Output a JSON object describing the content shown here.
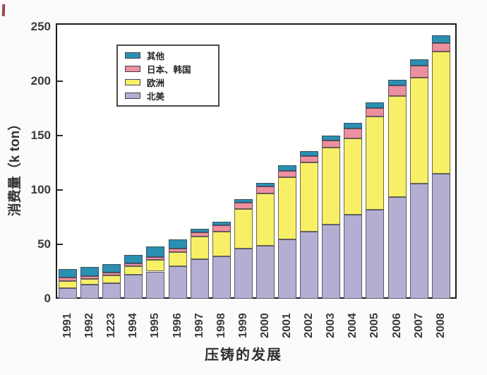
{
  "chart_data": {
    "type": "bar",
    "stacked": true,
    "title": "",
    "xlabel": "压铸的发展",
    "ylabel": "消费量（k ton）",
    "ylim": [
      0,
      250
    ],
    "yticks": [
      0,
      50,
      100,
      150,
      200,
      250
    ],
    "grid": false,
    "legend_position": "upper-left-inside",
    "categories": [
      "1991",
      "1992",
      "1223",
      "1994",
      "1995",
      "1996",
      "1997",
      "1998",
      "1999",
      "2000",
      "2001",
      "2002",
      "2003",
      "2004",
      "2005",
      "2006",
      "2007",
      "2008"
    ],
    "series": [
      {
        "name": "北美",
        "color": "#b3aed2",
        "values": [
          9.5,
          13,
          14,
          22,
          25,
          30,
          36.5,
          39,
          46,
          49,
          54.5,
          62,
          68,
          77.5,
          82,
          93.5,
          106,
          115
        ]
      },
      {
        "name": "欧洲",
        "color": "#f7f066",
        "values": [
          7,
          5,
          7.5,
          8,
          11,
          13,
          20.5,
          23,
          36.5,
          48,
          57,
          63.5,
          71,
          70,
          85.5,
          93,
          97,
          112
        ]
      },
      {
        "name": "日本、韩国",
        "color": "#ec8f9f",
        "values": [
          3,
          3,
          2.5,
          2.5,
          2.5,
          3,
          4,
          5.5,
          5.5,
          6,
          6,
          5.5,
          6.5,
          9,
          8,
          9.5,
          11.5,
          8
        ]
      },
      {
        "name": "其他",
        "color": "#2b8fb2",
        "values": [
          7.5,
          8,
          8,
          8,
          9.5,
          8.5,
          3.5,
          3.5,
          3.5,
          3.5,
          5,
          5,
          4.5,
          5.5,
          5,
          5.5,
          5.5,
          7
        ]
      }
    ],
    "legend_items": [
      "其他",
      "日本、韩国",
      "欧洲",
      "北美"
    ]
  },
  "style": {
    "axis_color": "#1c1c1c",
    "text_color": "#3a3a3a",
    "plot_bg": "#fffffe",
    "page_bg": "#fbfbfb",
    "bar_edge": "#4a4a55",
    "artifact_color": "#8c2730"
  }
}
